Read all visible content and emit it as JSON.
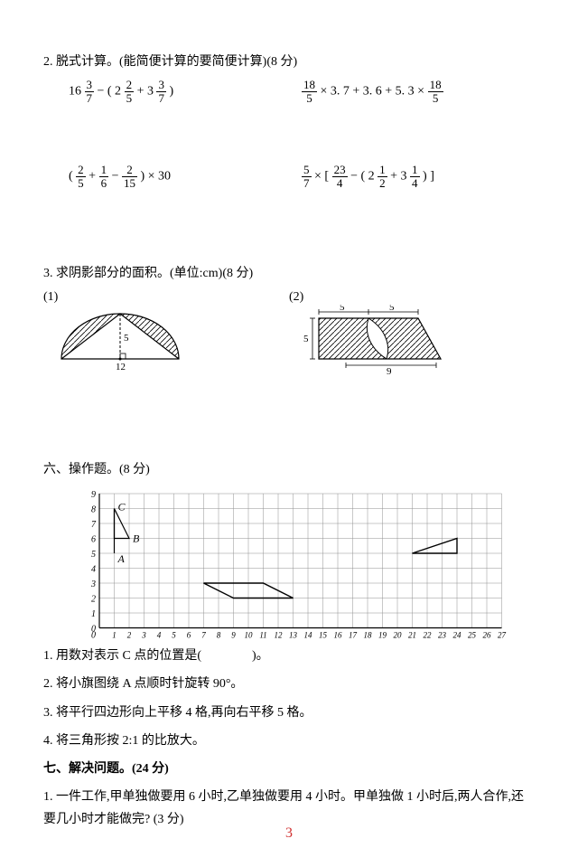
{
  "q2": {
    "title": "2. 脱式计算。(能简便计算的要简便计算)(8 分)",
    "expr_a_prefix": "16 ",
    "expr_a_f1_n": "3",
    "expr_a_f1_d": "7",
    "expr_a_mid1": " − ( 2 ",
    "expr_a_f2_n": "2",
    "expr_a_f2_d": "5",
    "expr_a_mid2": " + 3 ",
    "expr_a_f3_n": "3",
    "expr_a_f3_d": "7",
    "expr_a_suffix": " )",
    "expr_b_f1_n": "18",
    "expr_b_f1_d": "5",
    "expr_b_mid": " × 3. 7 + 3. 6 + 5. 3 × ",
    "expr_b_f2_n": "18",
    "expr_b_f2_d": "5",
    "expr_c_prefix": "( ",
    "expr_c_f1_n": "2",
    "expr_c_f1_d": "5",
    "expr_c_mid1": " + ",
    "expr_c_f2_n": "1",
    "expr_c_f2_d": "6",
    "expr_c_mid2": " − ",
    "expr_c_f3_n": "2",
    "expr_c_f3_d": "15",
    "expr_c_suffix": " ) × 30",
    "expr_d_f1_n": "5",
    "expr_d_f1_d": "7",
    "expr_d_mid1": " × [ ",
    "expr_d_f2_n": "23",
    "expr_d_f2_d": "4",
    "expr_d_mid2": " − ( 2 ",
    "expr_d_f3_n": "1",
    "expr_d_f3_d": "2",
    "expr_d_mid3": " + 3 ",
    "expr_d_f4_n": "1",
    "expr_d_f4_d": "4",
    "expr_d_suffix": " ) ]"
  },
  "q3": {
    "title": "3. 求阴影部分的面积。(单位:cm)(8 分)",
    "p1": "(1)",
    "p2": "(2)",
    "fig1": {
      "d": "12",
      "h": "5"
    },
    "fig2": {
      "t1": "5",
      "t2": "5",
      "h": "5",
      "b": "9"
    }
  },
  "q6": {
    "title": "六、操作题。(8 分)",
    "ylabels": [
      "9",
      "8",
      "7",
      "6",
      "5",
      "4",
      "3",
      "2",
      "1",
      "0"
    ],
    "xlabels": [
      "1",
      "2",
      "3",
      "4",
      "5",
      "6",
      "7",
      "8",
      "9",
      "10",
      "11",
      "12",
      "13",
      "14",
      "15",
      "16",
      "17",
      "18",
      "19",
      "20",
      "21",
      "22",
      "23",
      "24",
      "25",
      "26",
      "27"
    ],
    "labelC": "C",
    "labelB": "B",
    "labelA": "A",
    "sub1": "1. 用数对表示 C 点的位置是(　　　　)。",
    "sub2": "2. 将小旗图绕 A 点顺时针旋转 90°。",
    "sub3": "3. 将平行四边形向上平移 4 格,再向右平移 5 格。",
    "sub4": "4. 将三角形按 2:1 的比放大。"
  },
  "q7": {
    "title": "七、解决问题。(24 分)",
    "sub1": "1. 一件工作,甲单独做要用 6 小时,乙单独做要用 4 小时。甲单独做 1 小时后,两人合作,还要几小时才能做完? (3 分)"
  },
  "pagenum": "3",
  "colors": {
    "text": "#000000",
    "pagenum": "#d03030",
    "grid": "#808080",
    "hatch": "#000000"
  }
}
